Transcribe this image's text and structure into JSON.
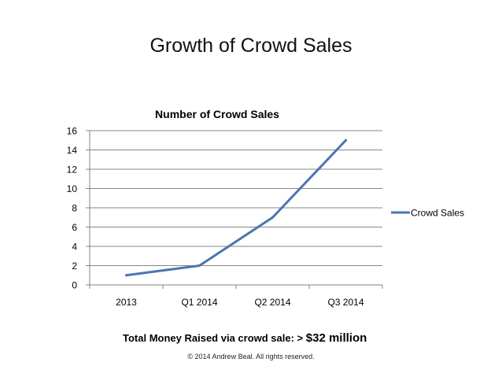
{
  "slide": {
    "title": "Growth of Crowd Sales",
    "money_label": "Total Money Raised via crowd sale: >",
    "money_value": "$32 million",
    "copyright": "© 2014 Andrew Beal. All rights reserved."
  },
  "chart_data": {
    "type": "line",
    "title": "Number of Crowd Sales",
    "categories": [
      "2013",
      "Q1 2014",
      "Q2 2014",
      "Q3 2014"
    ],
    "series": [
      {
        "name": "Crowd Sales",
        "values": [
          1,
          2,
          7,
          15
        ]
      }
    ],
    "ylim": [
      0,
      16
    ],
    "yticks": [
      0,
      2,
      4,
      6,
      8,
      10,
      12,
      14,
      16
    ],
    "xlabel": "",
    "ylabel": "",
    "grid": true,
    "legend_position": "right",
    "colors": {
      "series": "#4a76b0",
      "grid": "#868686"
    }
  }
}
